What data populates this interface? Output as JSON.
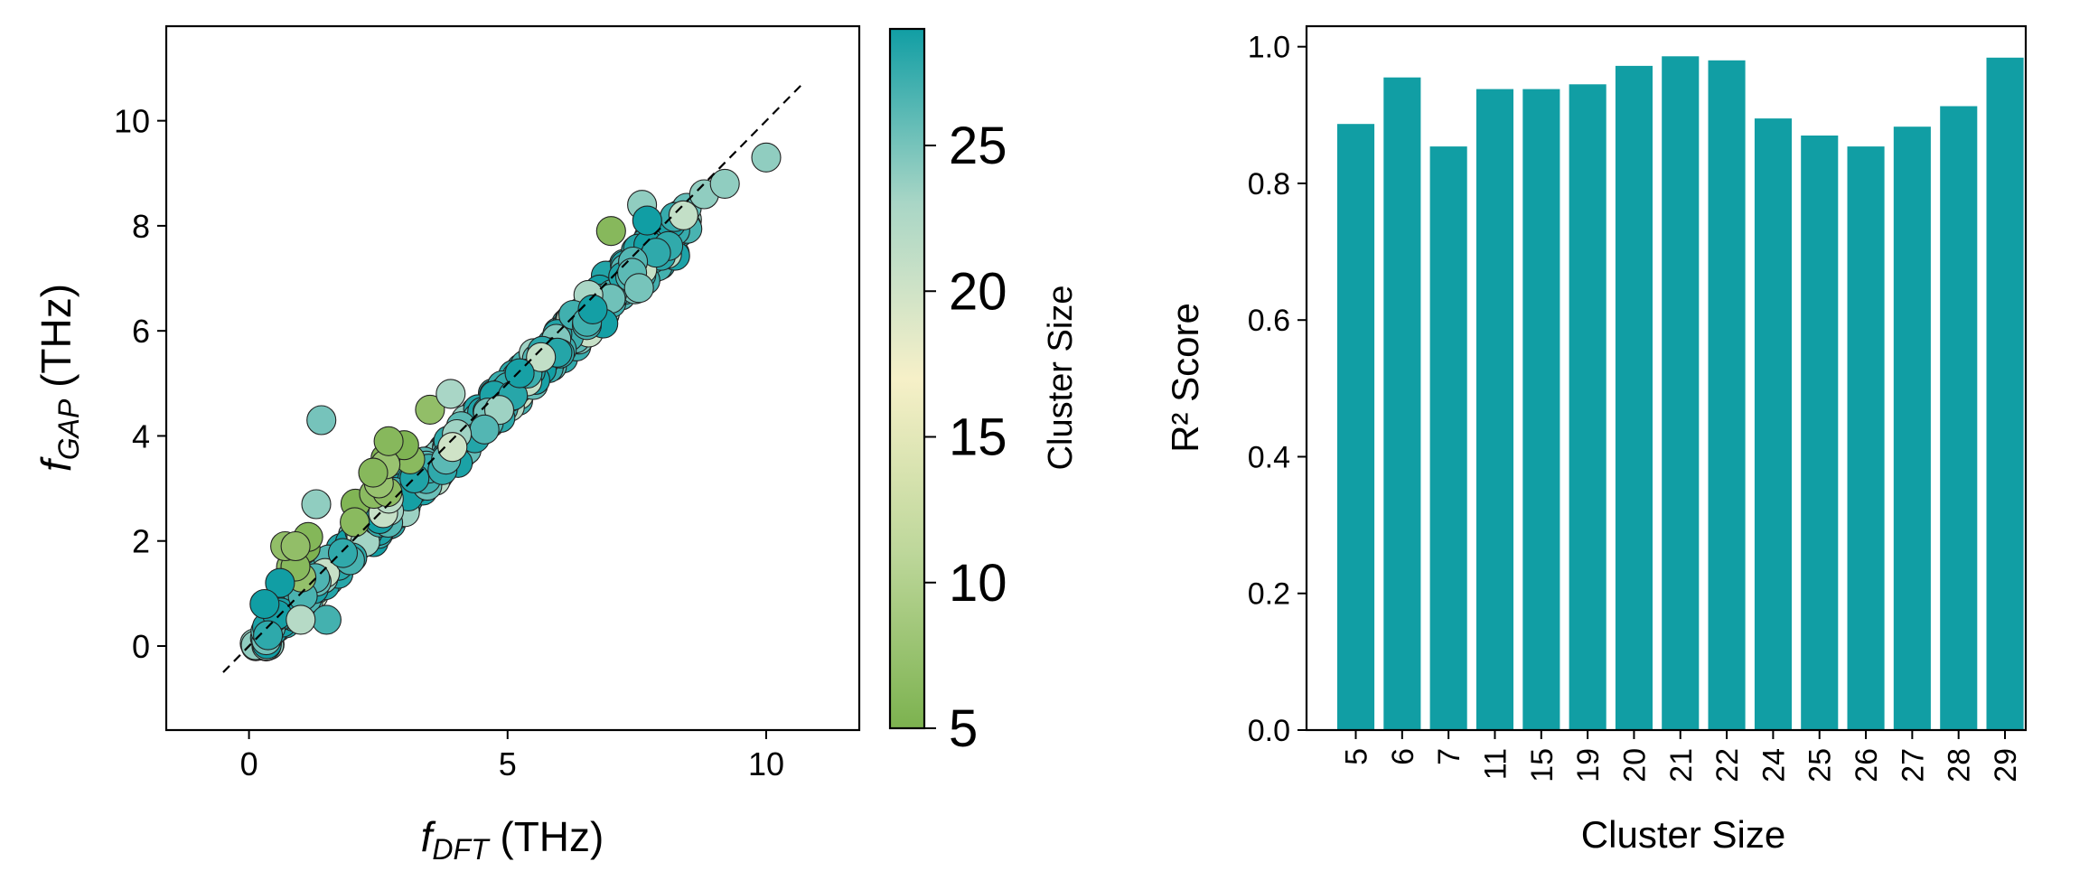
{
  "chart_data": [
    {
      "type": "scatter",
      "title": "",
      "xlabel": {
        "main": "f",
        "sub": "DFT",
        "unit": " (THz)"
      },
      "ylabel": {
        "main": "f",
        "sub": "GAP",
        "unit": " (THz)"
      },
      "xlim": [
        -1.6,
        11.8
      ],
      "ylim": [
        -1.6,
        11.8
      ],
      "xticks": [
        0,
        5,
        10
      ],
      "yticks": [
        0,
        2,
        4,
        6,
        8,
        10
      ],
      "reference_line": {
        "style": "dashed",
        "from": [
          -0.5,
          -0.5
        ],
        "to": [
          10.7,
          10.7
        ]
      },
      "colorbar": {
        "label": "Cluster Size",
        "range": [
          5,
          29
        ],
        "ticks": [
          5,
          10,
          15,
          20,
          25
        ],
        "stops": [
          "#7cb24f",
          "#bdd79a",
          "#f6f0c8",
          "#a9d6c6",
          "#119ea4"
        ]
      },
      "notable_points": [
        {
          "x": 1.4,
          "y": 4.3,
          "c": 25
        },
        {
          "x": 1.3,
          "y": 2.7,
          "c": 24
        },
        {
          "x": 2.4,
          "y": 3.3,
          "c": 6
        },
        {
          "x": 2.7,
          "y": 3.9,
          "c": 6
        },
        {
          "x": 3.5,
          "y": 4.5,
          "c": 7
        },
        {
          "x": 3.9,
          "y": 4.8,
          "c": 23
        },
        {
          "x": 7.0,
          "y": 7.9,
          "c": 6
        },
        {
          "x": 7.6,
          "y": 8.4,
          "c": 24
        },
        {
          "x": 7.7,
          "y": 8.1,
          "c": 29
        },
        {
          "x": 8.4,
          "y": 8.2,
          "c": 21
        },
        {
          "x": 8.8,
          "y": 8.6,
          "c": 24
        },
        {
          "x": 9.2,
          "y": 8.8,
          "c": 24
        },
        {
          "x": 10.0,
          "y": 9.3,
          "c": 24
        },
        {
          "x": 1.5,
          "y": 0.5,
          "c": 27
        },
        {
          "x": 1.0,
          "y": 0.5,
          "c": 22
        },
        {
          "x": 0.7,
          "y": 1.9,
          "c": 7
        },
        {
          "x": 0.9,
          "y": 1.9,
          "c": 7
        },
        {
          "x": 0.6,
          "y": 1.2,
          "c": 29
        },
        {
          "x": 0.3,
          "y": 0.8,
          "c": 29
        }
      ]
    },
    {
      "type": "bar",
      "title": "",
      "xlabel": "Cluster Size",
      "ylabel": "R² Score",
      "categories": [
        "5",
        "6",
        "7",
        "11",
        "15",
        "19",
        "20",
        "21",
        "22",
        "24",
        "25",
        "26",
        "27",
        "28",
        "29"
      ],
      "values": [
        0.887,
        0.955,
        0.854,
        0.938,
        0.938,
        0.945,
        0.972,
        0.986,
        0.98,
        0.895,
        0.87,
        0.854,
        0.883,
        0.913,
        0.984
      ],
      "ylim": [
        0,
        1.03
      ],
      "yticks": [
        "0.0",
        "0.2",
        "0.4",
        "0.6",
        "0.8",
        "1.0"
      ],
      "color": "#119ea4"
    }
  ]
}
